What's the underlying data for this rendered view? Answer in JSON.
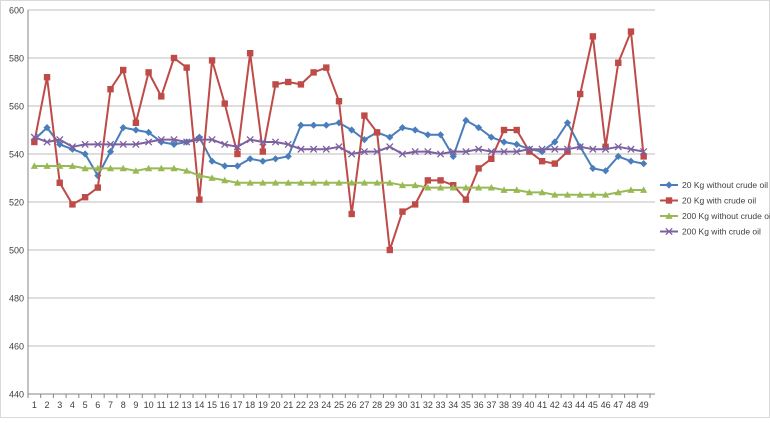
{
  "chart_data": {
    "type": "line",
    "title": "",
    "xlabel": "",
    "ylabel": "",
    "ylim": [
      440,
      600
    ],
    "yticks": [
      440,
      460,
      480,
      500,
      520,
      540,
      560,
      580,
      600
    ],
    "x": [
      1,
      2,
      3,
      4,
      5,
      6,
      7,
      8,
      9,
      10,
      11,
      12,
      13,
      14,
      15,
      16,
      17,
      18,
      19,
      20,
      21,
      22,
      23,
      24,
      25,
      26,
      27,
      28,
      29,
      30,
      31,
      32,
      33,
      34,
      35,
      36,
      37,
      38,
      39,
      40,
      41,
      42,
      43,
      44,
      45,
      46,
      47,
      48,
      49
    ],
    "grid": "horizontal",
    "legend_position": "right",
    "series": [
      {
        "name": "20 Kg without crude oil",
        "color": "#4a7ebb",
        "marker": "diamond",
        "values": [
          546,
          551,
          544,
          542,
          540,
          531,
          541,
          551,
          550,
          549,
          545,
          544,
          545,
          547,
          537,
          535,
          535,
          538,
          537,
          538,
          539,
          552,
          552,
          552,
          553,
          550,
          546,
          549,
          547,
          551,
          550,
          548,
          548,
          539,
          554,
          551,
          547,
          545,
          544,
          542,
          541,
          545,
          553,
          543,
          534,
          533,
          539,
          537,
          536
        ]
      },
      {
        "name": "20 Kg with crude oil",
        "color": "#be4b48",
        "marker": "square",
        "values": [
          545,
          572,
          528,
          519,
          522,
          526,
          567,
          575,
          553,
          574,
          564,
          580,
          576,
          521,
          579,
          561,
          540,
          582,
          541,
          569,
          570,
          569,
          574,
          576,
          562,
          515,
          556,
          549,
          500,
          516,
          519,
          529,
          529,
          527,
          521,
          534,
          538,
          550,
          550,
          541,
          537,
          536,
          541,
          565,
          589,
          543,
          578,
          591,
          539
        ]
      },
      {
        "name": "200 Kg without crude oil",
        "color": "#98b954",
        "marker": "triangle",
        "values": [
          535,
          535,
          535,
          535,
          534,
          534,
          534,
          534,
          533,
          534,
          534,
          534,
          533,
          531,
          530,
          529,
          528,
          528,
          528,
          528,
          528,
          528,
          528,
          528,
          528,
          528,
          528,
          528,
          528,
          527,
          527,
          526,
          526,
          526,
          526,
          526,
          526,
          525,
          525,
          524,
          524,
          523,
          523,
          523,
          523,
          523,
          524,
          525,
          525
        ]
      },
      {
        "name": "200 Kg with crude oil",
        "color": "#7d60a0",
        "marker": "x",
        "values": [
          547,
          545,
          546,
          543,
          544,
          544,
          544,
          544,
          544,
          545,
          546,
          546,
          545,
          546,
          546,
          544,
          543,
          546,
          545,
          545,
          544,
          542,
          542,
          542,
          543,
          540,
          541,
          541,
          543,
          540,
          541,
          541,
          540,
          541,
          541,
          542,
          541,
          541,
          541,
          542,
          542,
          542,
          542,
          543,
          542,
          542,
          543,
          542,
          541
        ]
      }
    ]
  }
}
